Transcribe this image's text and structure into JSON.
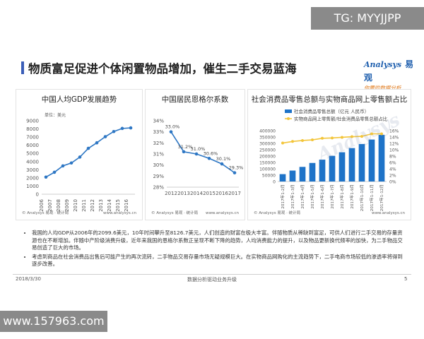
{
  "watermark_top": "TG: MYYJJPP",
  "watermark_bottom": "www.157963.com",
  "page_title": "物质富足促进个体闲置物品增加，催生二手交易蓝海",
  "logo": {
    "en": "Analysys",
    "cn": "易观",
    "sub": "你要的数据分析"
  },
  "chart_watermark": "Analysys",
  "colors": {
    "accent": "#3b5eb8",
    "line_blue": "#2e77c4",
    "bar_blue": "#1e73c8",
    "line_yellow": "#f3c53a"
  },
  "chart_data": [
    {
      "type": "line",
      "title": "中国人均GDP发展趋势",
      "unit_label": "单位：美元",
      "x": [
        "2006",
        "2007",
        "2008",
        "2009",
        "2010",
        "2011",
        "2012",
        "2013",
        "2014",
        "2015",
        "2016"
      ],
      "values": [
        2099.6,
        2690,
        3470,
        3830,
        4550,
        5620,
        6300,
        7050,
        7680,
        8060,
        8126.7
      ],
      "ylim": [
        0,
        9000
      ],
      "yticks": [
        "0",
        "1000",
        "2000",
        "3000",
        "4000",
        "5000",
        "6000",
        "7000",
        "8000",
        "9000"
      ],
      "source": "© Analysys 易观 · 统计局",
      "site": "www.analysys.cn"
    },
    {
      "type": "line",
      "title": "中国居民恩格尔系数",
      "x": [
        "2012",
        "2013",
        "2014",
        "2015",
        "2016",
        "2017"
      ],
      "values": [
        33.0,
        31.2,
        31.0,
        30.6,
        30.1,
        29.3
      ],
      "data_labels": [
        "33.0%",
        "31.2%",
        "31.0%",
        "30.6%",
        "30.1%",
        "29.3%"
      ],
      "ylim": [
        28,
        34
      ],
      "yticks": [
        "28%",
        "29%",
        "30%",
        "31%",
        "32%",
        "33%",
        "34%"
      ],
      "source": "© Analysys 易观 · 统计局",
      "site": "www.analysys.cn"
    },
    {
      "type": "bar",
      "title": "社会消费品零售总额与实物商品网上零售额占比",
      "categories": [
        "2017年1-2月",
        "2017年1-3月",
        "2017年1-4月",
        "2017年1-5月",
        "2017年1-6月",
        "2017年1-7月",
        "2017年1-8月",
        "2017年1-9月",
        "2017年1-10月",
        "2017年1-11月",
        "2017年1-12月"
      ],
      "series": [
        {
          "name": "社会消费品零售总额（亿元 人民币）",
          "values": [
            58000,
            86000,
            115000,
            146000,
            172000,
            202000,
            230000,
            263000,
            295000,
            330000,
            367000
          ]
        },
        {
          "name": "实物商品网上零售额/社会消费品零售总额占比",
          "values": [
            12.1,
            12.6,
            12.9,
            13.1,
            13.6,
            13.7,
            13.9,
            14.1,
            14.2,
            15.0,
            15.0
          ]
        }
      ],
      "ylim": [
        0,
        400000
      ],
      "yticks": [
        "0",
        "50000",
        "100000",
        "150000",
        "200000",
        "250000",
        "300000",
        "350000",
        "400000"
      ],
      "y2lim": [
        0,
        16
      ],
      "y2ticks": [
        "0%",
        "2%",
        "4%",
        "6%",
        "8%",
        "10%",
        "12%",
        "14%",
        "16%"
      ],
      "legend_position": "top",
      "source": "© Analysys 易观 · 统计局",
      "site": "www.analysys.cn"
    }
  ],
  "notes": [
    "我国的人均GDP从2006年的2099.6美元，10年时间攀升至8126.7美元，人们创造的财富在极大丰富。伴随物质从稀缺到富足，可供人们进行二手交易的存量资源也在不断增加。伴随中产阶级消费升级，近年来我国的恩格尔系数正呈现不断下降的趋势，人均消费能力的提升，以及物品更新换代频率的加快，为二手物品交易创造了巨大的市场。",
    "考虑到商品在社会消费品出售后可能产生的再次流转，二手物品交易存量市场无疑规模巨大。在实物商品网购化的主流趋势下，二手电商市场较低的渗透率将得到逐步改善。"
  ],
  "footer": {
    "date": "2018/3/30",
    "center": "数据分析驱动业务升级",
    "page": "5"
  }
}
